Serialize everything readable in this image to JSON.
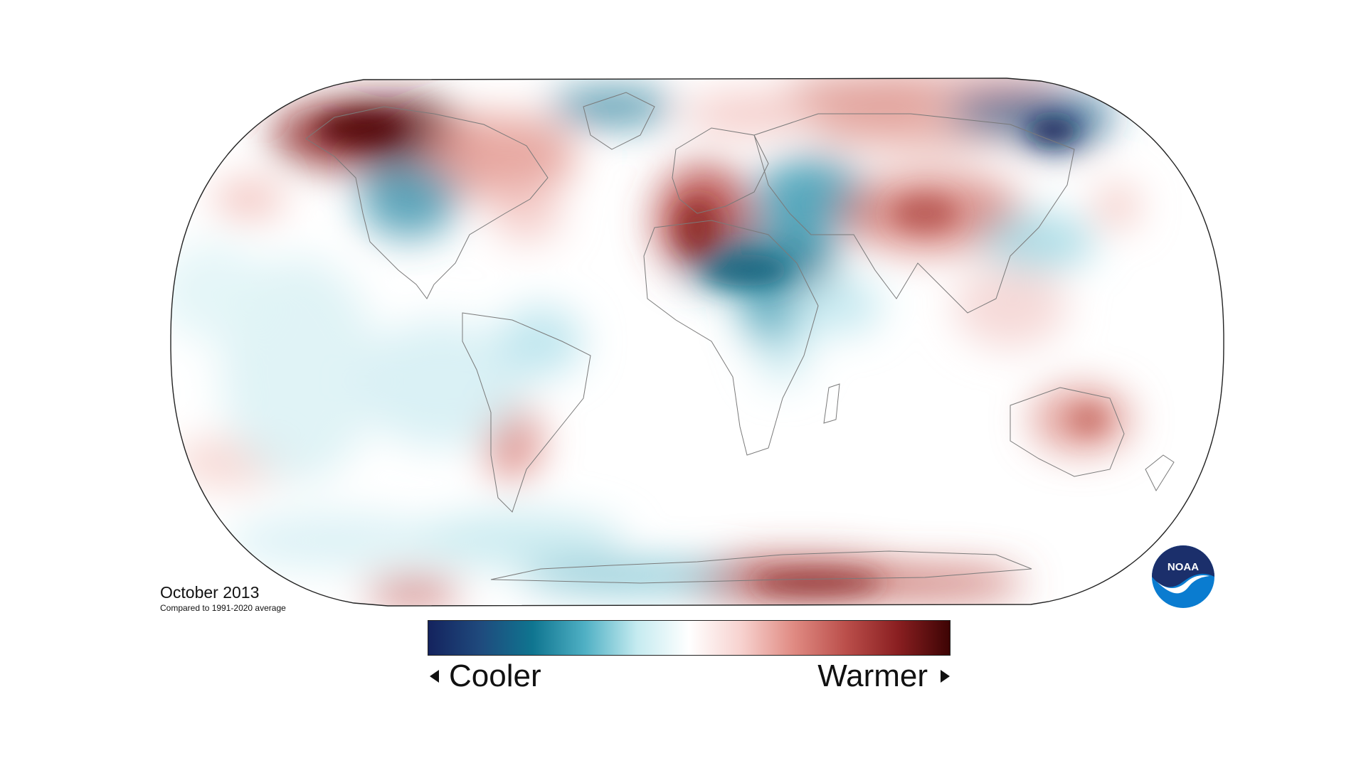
{
  "map": {
    "title": "October 2013",
    "subtitle": "Compared to 1991-2020 average",
    "projection": "robinson",
    "colors": {
      "scale": [
        "#14235e",
        "#1f4a7d",
        "#0f7590",
        "#4fb0c4",
        "#c5ebf0",
        "#ffffff",
        "#f7d2cf",
        "#e08b83",
        "#bb4f4b",
        "#8a1f21",
        "#3d0404"
      ],
      "outline": "#222222",
      "borders": "#777777"
    }
  },
  "legend": {
    "low_label": "Cooler",
    "high_label": "Warmer"
  },
  "logo": {
    "text": "NOAA",
    "icon": "noaa-logo-icon"
  }
}
